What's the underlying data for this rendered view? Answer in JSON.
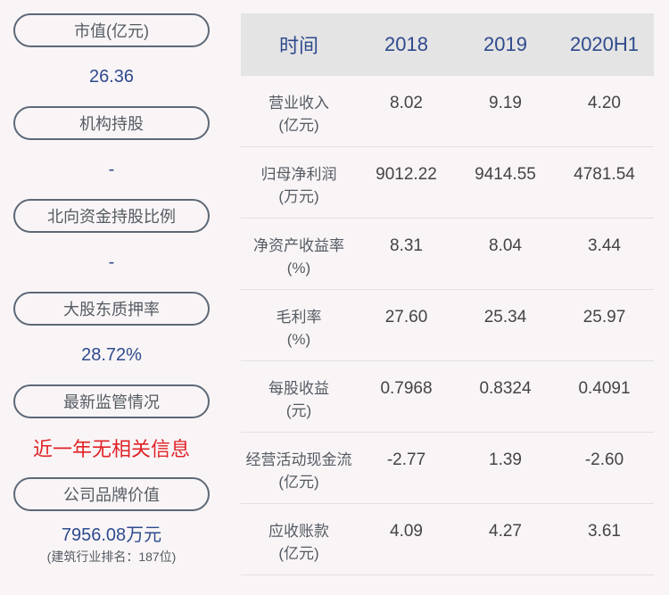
{
  "left_panel": {
    "items": [
      {
        "label": "市值(亿元)",
        "value": "26.36"
      },
      {
        "label": "机构持股",
        "value": "-"
      },
      {
        "label": "北向资金持股比例",
        "value": "-"
      },
      {
        "label": "大股东质押率",
        "value": "28.72%"
      },
      {
        "label": "最新监管情况",
        "value": "近一年无相关信息"
      },
      {
        "label": "公司品牌价值",
        "value": "7956.08万元",
        "sub": "(建筑行业排名：187位)"
      }
    ]
  },
  "table": {
    "headers": [
      "时间",
      "2018",
      "2019",
      "2020H1"
    ],
    "rows": [
      {
        "name": "营业收入",
        "unit": "(亿元)",
        "values": [
          "8.02",
          "9.19",
          "4.20"
        ]
      },
      {
        "name": "归母净利润",
        "unit": "(万元)",
        "values": [
          "9012.22",
          "9414.55",
          "4781.54"
        ]
      },
      {
        "name": "净资产收益率",
        "unit": "(%)",
        "values": [
          "8.31",
          "8.04",
          "3.44"
        ]
      },
      {
        "name": "毛利率",
        "unit": "(%)",
        "values": [
          "27.60",
          "25.34",
          "25.97"
        ]
      },
      {
        "name": "每股收益",
        "unit": "(元)",
        "values": [
          "0.7968",
          "0.8324",
          "0.4091"
        ]
      },
      {
        "name": "经营活动现金流",
        "unit": "(亿元)",
        "values": [
          "-2.77",
          "1.39",
          "-2.60"
        ]
      },
      {
        "name": "应收账款",
        "unit": "(亿元)",
        "values": [
          "4.09",
          "4.27",
          "3.61"
        ]
      }
    ]
  },
  "colors": {
    "accent_blue": "#2e4a8d",
    "alert_red": "#e02327",
    "header_bg": "#e4e4e4",
    "page_bg": "#f9f5f7"
  }
}
